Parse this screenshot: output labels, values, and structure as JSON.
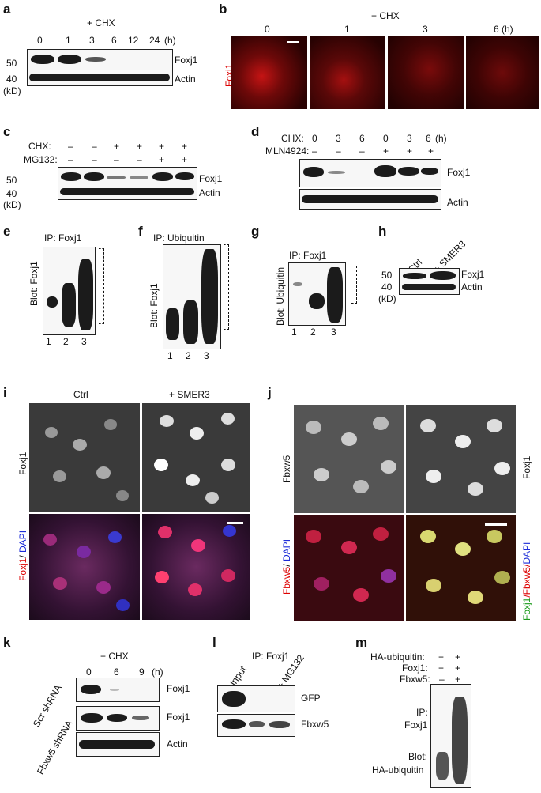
{
  "panels": {
    "a": {
      "letter": "a",
      "treatment": "+ CHX",
      "times": [
        "0",
        "1",
        "3",
        "6",
        "12",
        "24"
      ],
      "unit": "(h)",
      "mw": [
        "50",
        "40"
      ],
      "kd": "(kD)",
      "labels": [
        "Foxj1",
        "Actin"
      ]
    },
    "b": {
      "letter": "b",
      "treatment": "+ CHX",
      "times": [
        "0",
        "1",
        "3",
        "6 (h)"
      ],
      "stain": "Foxj1"
    },
    "c": {
      "letter": "c",
      "rows": [
        {
          "name": "CHX:",
          "signs": [
            "–",
            "–",
            "+",
            "+",
            "+",
            "+"
          ]
        },
        {
          "name": "MG132:",
          "signs": [
            "–",
            "–",
            "–",
            "–",
            "+",
            "+"
          ]
        }
      ],
      "mw": [
        "50",
        "40"
      ],
      "kd": "(kD)",
      "labels": [
        "Foxj1",
        "Actin"
      ]
    },
    "d": {
      "letter": "d",
      "rows": [
        {
          "name": "CHX:",
          "signs": [
            "0",
            "3",
            "6",
            "0",
            "3",
            "6"
          ],
          "unit": "(h)"
        },
        {
          "name": "MLN4924:",
          "signs": [
            "–",
            "–",
            "–",
            "+",
            "+",
            "+"
          ]
        }
      ],
      "labels": [
        "Foxj1",
        "Actin"
      ]
    },
    "e": {
      "letter": "e",
      "ip": "IP: Foxj1",
      "blot": "Blot: Foxj1",
      "lanes": [
        "1",
        "2",
        "3"
      ]
    },
    "f": {
      "letter": "f",
      "ip": "IP: Ubiquitin",
      "blot": "Blot: Foxj1",
      "lanes": [
        "1",
        "2",
        "3"
      ]
    },
    "g": {
      "letter": "g",
      "ip": "IP: Foxj1",
      "blot": "Blot: Ubiquitin",
      "lanes": [
        "1",
        "2",
        "3"
      ]
    },
    "h": {
      "letter": "h",
      "lanes": [
        "Ctrl",
        "+ SMER3"
      ],
      "mw": [
        "50",
        "40"
      ],
      "kd": "(kD)",
      "labels": [
        "Foxj1",
        "Actin"
      ]
    },
    "i": {
      "letter": "i",
      "cols": [
        "Ctrl",
        "+ SMER3"
      ],
      "top_label": "Foxj1",
      "bottom_label_red": "Foxj1",
      "bottom_label_sep": "/ ",
      "bottom_label_blue": "DAPI"
    },
    "j": {
      "letter": "j",
      "left_label": "Fbxw5",
      "right_label": "Foxj1",
      "bl_red": "Fbxw5",
      "bl_sep": "/ ",
      "bl_blue": "DAPI",
      "br_green": "Foxj1",
      "br_red": "/Fbxw5/",
      "br_blue": "DAPI"
    },
    "k": {
      "letter": "k",
      "treatment": "+ CHX",
      "times": [
        "0",
        "6",
        "9"
      ],
      "unit": "(h)",
      "rows": [
        "Scr shRNA",
        "Fbxw5 shRNA"
      ],
      "labels": [
        "Foxj1",
        "Foxj1",
        "Actin"
      ]
    },
    "l": {
      "letter": "l",
      "ip": "IP: Foxj1",
      "lanes": [
        "Input",
        "+ MG132"
      ],
      "labels": [
        "GFP",
        "Fbxw5"
      ]
    },
    "m": {
      "letter": "m",
      "rows": [
        {
          "name": "HA-ubiquitin:",
          "signs": [
            "+",
            "+"
          ]
        },
        {
          "name": "Foxj1:",
          "signs": [
            "+",
            "+"
          ]
        },
        {
          "name": "Fbxw5:",
          "signs": [
            "–",
            "+"
          ]
        }
      ],
      "ip1": "IP:",
      "ip2": "Foxj1",
      "blot1": "Blot:",
      "blot2": "HA-ubiquitin"
    }
  }
}
